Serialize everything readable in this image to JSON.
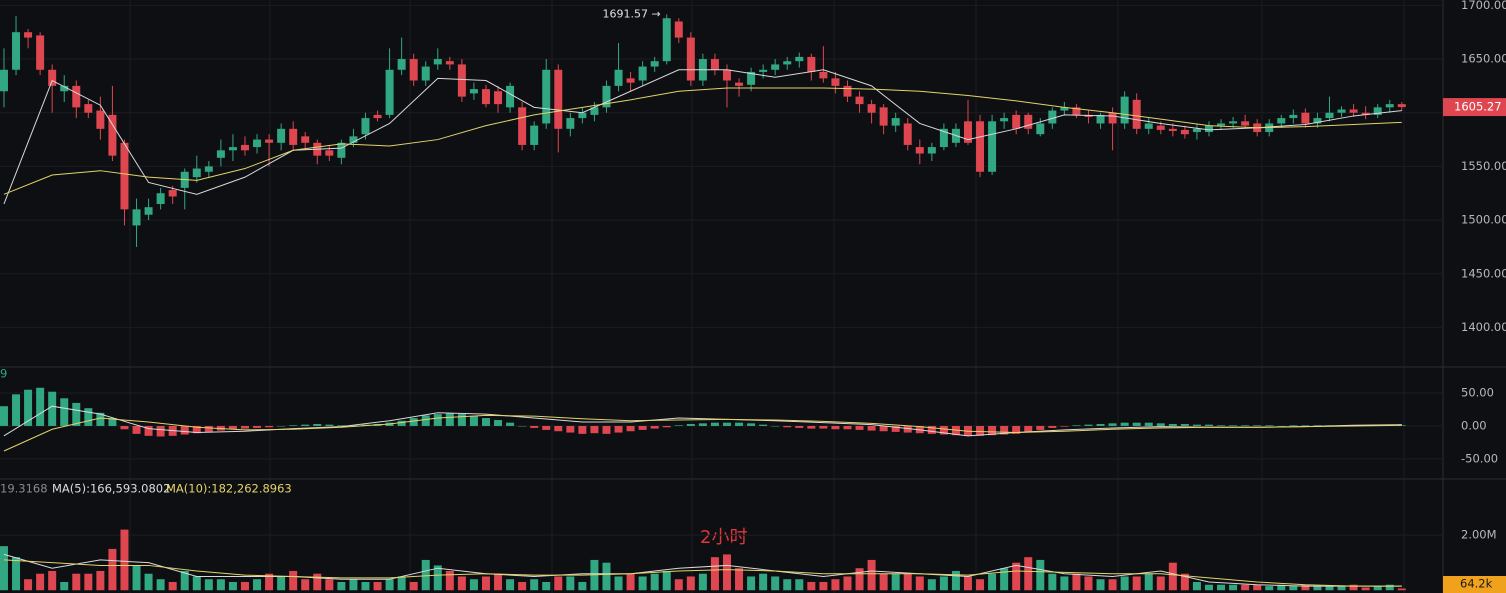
{
  "chart_data": {
    "type": "candlestick",
    "interval": "2小时",
    "up_color": "#31a882",
    "down_color": "#de4650",
    "xlim": [
      -0.33,
      119.42
    ],
    "ylim": [
      1365,
      1705
    ],
    "yticks": [
      {
        "value": 1700,
        "label": "1700.00"
      },
      {
        "value": 1650,
        "label": "1650.00"
      },
      {
        "value": 1600,
        "label": "1600.00"
      },
      {
        "value": 1550,
        "label": "1550.00"
      },
      {
        "value": 1500,
        "label": "1500.00"
      },
      {
        "value": 1450,
        "label": "1450.00"
      },
      {
        "value": 1400,
        "label": "1400.00"
      }
    ],
    "grid": true,
    "annotation": {
      "label": "1691.57 →",
      "value": 1691.57,
      "x": 55
    },
    "candles": [
      [
        1620,
        1660,
        1605,
        1640
      ],
      [
        1640,
        1690,
        1635,
        1675
      ],
      [
        1675,
        1678,
        1660,
        1670
      ],
      [
        1672,
        1675,
        1635,
        1640
      ],
      [
        1640,
        1645,
        1600,
        1625
      ],
      [
        1620,
        1635,
        1610,
        1625
      ],
      [
        1625,
        1630,
        1595,
        1605
      ],
      [
        1608,
        1612,
        1595,
        1600
      ],
      [
        1602,
        1615,
        1575,
        1585
      ],
      [
        1598,
        1625,
        1555,
        1560
      ],
      [
        1572,
        1575,
        1495,
        1510
      ],
      [
        1495,
        1520,
        1475,
        1510
      ],
      [
        1505,
        1520,
        1500,
        1512
      ],
      [
        1515,
        1530,
        1510,
        1525
      ],
      [
        1528,
        1532,
        1515,
        1522
      ],
      [
        1530,
        1548,
        1510,
        1545
      ],
      [
        1540,
        1560,
        1535,
        1548
      ],
      [
        1545,
        1555,
        1540,
        1550
      ],
      [
        1558,
        1575,
        1550,
        1565
      ],
      [
        1565,
        1580,
        1555,
        1568
      ],
      [
        1570,
        1578,
        1560,
        1565
      ],
      [
        1568,
        1580,
        1562,
        1575
      ],
      [
        1575,
        1580,
        1550,
        1572
      ],
      [
        1572,
        1590,
        1565,
        1585
      ],
      [
        1585,
        1592,
        1565,
        1570
      ],
      [
        1578,
        1582,
        1565,
        1572
      ],
      [
        1572,
        1575,
        1552,
        1560
      ],
      [
        1565,
        1570,
        1555,
        1560
      ],
      [
        1558,
        1575,
        1552,
        1572
      ],
      [
        1572,
        1585,
        1568,
        1578
      ],
      [
        1580,
        1600,
        1575,
        1595
      ],
      [
        1598,
        1602,
        1592,
        1595
      ],
      [
        1598,
        1660,
        1595,
        1640
      ],
      [
        1640,
        1670,
        1635,
        1650
      ],
      [
        1650,
        1655,
        1625,
        1630
      ],
      [
        1630,
        1648,
        1625,
        1643
      ],
      [
        1645,
        1660,
        1640,
        1650
      ],
      [
        1648,
        1652,
        1640,
        1645
      ],
      [
        1645,
        1650,
        1610,
        1615
      ],
      [
        1618,
        1628,
        1612,
        1622
      ],
      [
        1622,
        1626,
        1605,
        1608
      ],
      [
        1620,
        1625,
        1600,
        1608
      ],
      [
        1605,
        1628,
        1600,
        1625
      ],
      [
        1605,
        1610,
        1565,
        1570
      ],
      [
        1570,
        1592,
        1565,
        1588
      ],
      [
        1590,
        1650,
        1585,
        1640
      ],
      [
        1640,
        1645,
        1563,
        1585
      ],
      [
        1585,
        1600,
        1578,
        1595
      ],
      [
        1595,
        1605,
        1590,
        1600
      ],
      [
        1598,
        1610,
        1592,
        1605
      ],
      [
        1605,
        1630,
        1600,
        1625
      ],
      [
        1625,
        1665,
        1620,
        1640
      ],
      [
        1632,
        1638,
        1620,
        1628
      ],
      [
        1630,
        1648,
        1625,
        1643
      ],
      [
        1643,
        1652,
        1638,
        1648
      ],
      [
        1648,
        1691.57,
        1645,
        1688
      ],
      [
        1685,
        1688,
        1665,
        1670
      ],
      [
        1670,
        1675,
        1625,
        1630
      ],
      [
        1630,
        1655,
        1625,
        1650
      ],
      [
        1650,
        1655,
        1635,
        1640
      ],
      [
        1640,
        1645,
        1605,
        1630
      ],
      [
        1628,
        1632,
        1615,
        1625
      ],
      [
        1626,
        1642,
        1620,
        1638
      ],
      [
        1638,
        1645,
        1632,
        1640
      ],
      [
        1640,
        1650,
        1635,
        1645
      ],
      [
        1645,
        1652,
        1640,
        1648
      ],
      [
        1648,
        1656,
        1642,
        1652
      ],
      [
        1652,
        1655,
        1630,
        1638
      ],
      [
        1638,
        1662,
        1628,
        1632
      ],
      [
        1632,
        1638,
        1618,
        1625
      ],
      [
        1625,
        1630,
        1610,
        1615
      ],
      [
        1615,
        1620,
        1600,
        1608
      ],
      [
        1608,
        1612,
        1590,
        1600
      ],
      [
        1605,
        1608,
        1580,
        1588
      ],
      [
        1588,
        1600,
        1582,
        1595
      ],
      [
        1590,
        1595,
        1565,
        1570
      ],
      [
        1568,
        1575,
        1552,
        1562
      ],
      [
        1562,
        1572,
        1555,
        1568
      ],
      [
        1568,
        1590,
        1565,
        1585
      ],
      [
        1572,
        1590,
        1568,
        1585
      ],
      [
        1592,
        1612,
        1570,
        1572
      ],
      [
        1592,
        1598,
        1540,
        1545
      ],
      [
        1545,
        1598,
        1542,
        1592
      ],
      [
        1592,
        1600,
        1585,
        1595
      ],
      [
        1598,
        1602,
        1580,
        1585
      ],
      [
        1598,
        1600,
        1580,
        1585
      ],
      [
        1580,
        1595,
        1578,
        1590
      ],
      [
        1590,
        1605,
        1585,
        1602
      ],
      [
        1602,
        1610,
        1598,
        1605
      ],
      [
        1605,
        1608,
        1595,
        1598
      ],
      [
        1598,
        1602,
        1590,
        1596
      ],
      [
        1590,
        1600,
        1585,
        1598
      ],
      [
        1600,
        1605,
        1565,
        1590
      ],
      [
        1590,
        1620,
        1585,
        1615
      ],
      [
        1612,
        1618,
        1580,
        1585
      ],
      [
        1585,
        1595,
        1580,
        1590
      ],
      [
        1588,
        1592,
        1580,
        1584
      ],
      [
        1585,
        1590,
        1578,
        1583
      ],
      [
        1584,
        1588,
        1576,
        1580
      ],
      [
        1582,
        1590,
        1575,
        1585
      ],
      [
        1582,
        1592,
        1578,
        1588
      ],
      [
        1588,
        1594,
        1584,
        1590
      ],
      [
        1590,
        1596,
        1586,
        1592
      ],
      [
        1592,
        1598,
        1586,
        1588
      ],
      [
        1590,
        1594,
        1578,
        1582
      ],
      [
        1582,
        1594,
        1578,
        1590
      ],
      [
        1590,
        1598,
        1586,
        1595
      ],
      [
        1595,
        1603,
        1590,
        1598
      ],
      [
        1600,
        1604,
        1586,
        1590
      ],
      [
        1590,
        1600,
        1586,
        1595
      ],
      [
        1595,
        1615,
        1592,
        1600
      ],
      [
        1600,
        1606,
        1596,
        1603
      ],
      [
        1603,
        1608,
        1596,
        1600
      ],
      [
        1600,
        1606,
        1594,
        1598
      ],
      [
        1598,
        1608,
        1595,
        1605
      ],
      [
        1605,
        1612,
        1600,
        1608
      ],
      [
        1608,
        1610,
        1602,
        1605.27
      ]
    ],
    "ma_x": [
      0,
      4,
      8,
      12,
      16,
      20,
      24,
      28,
      32,
      36,
      40,
      44,
      48,
      52,
      56,
      60,
      64,
      68,
      72,
      76,
      80,
      84,
      88,
      92,
      96,
      100,
      104,
      108,
      112,
      116
    ],
    "lines": [
      {
        "color": "#d9d9d9",
        "values": [
          1515,
          1630,
          1607,
          1535,
          1524,
          1540,
          1565,
          1567,
          1590,
          1632,
          1630,
          1605,
          1600,
          1620,
          1640,
          1640,
          1633,
          1640,
          1625,
          1590,
          1575,
          1585,
          1598,
          1597,
          1590,
          1584,
          1586,
          1589,
          1597,
          1602
        ]
      },
      {
        "color": "#e3d36a",
        "values": [
          1524,
          1542,
          1546,
          1540,
          1537,
          1548,
          1565,
          1571,
          1569,
          1575,
          1588,
          1598,
          1605,
          1612,
          1620,
          1623,
          1623,
          1623,
          1622,
          1620,
          1616,
          1611,
          1605,
          1600,
          1594,
          1588,
          1586,
          1587,
          1589,
          1591
        ]
      }
    ],
    "macd": {
      "legend": "9",
      "ylim": [
        -79,
        88
      ],
      "yticks": [
        {
          "value": 50,
          "label": "50.00"
        },
        {
          "value": 0,
          "label": "0.00"
        },
        {
          "value": -50,
          "label": "-50.00"
        }
      ],
      "histogram": [
        30,
        48,
        55,
        58,
        52,
        42,
        35,
        27,
        20,
        12,
        -5,
        -12,
        -15,
        -16,
        -15,
        -13,
        -11,
        -9,
        -7,
        -5,
        -4,
        -3,
        -2,
        0,
        1,
        2,
        3,
        2,
        1,
        1,
        2,
        3,
        5,
        8,
        12,
        16,
        18,
        19,
        18,
        15,
        12,
        9,
        5,
        0,
        -3,
        -6,
        -8,
        -10,
        -12,
        -11,
        -12,
        -10,
        -8,
        -6,
        -4,
        -2,
        1,
        3,
        4,
        5,
        5,
        5,
        4,
        2,
        0,
        -2,
        -3,
        -4,
        -4,
        -5,
        -5,
        -6,
        -7,
        -8,
        -9,
        -10,
        -11,
        -12,
        -13,
        -14,
        -15,
        -15,
        -14,
        -13,
        -12,
        -9,
        -6,
        -3,
        -1,
        1,
        2,
        3,
        4,
        5,
        5,
        5,
        4,
        3,
        3,
        2,
        2,
        1,
        1,
        1,
        1,
        1,
        0,
        1,
        1,
        1,
        1,
        1,
        0,
        1,
        1,
        1,
        1
      ],
      "lines": [
        {
          "color": "#d9d9d9",
          "values": [
            -15,
            30,
            18,
            -4,
            -10,
            -8,
            -4,
            -1,
            8,
            20,
            18,
            12,
            6,
            6,
            12,
            10,
            8,
            5,
            2,
            -6,
            -15,
            -10,
            -6,
            -3,
            -1,
            -2,
            -2,
            -1,
            1,
            2
          ]
        },
        {
          "color": "#e3d36a",
          "values": [
            -38,
            -5,
            12,
            6,
            -2,
            -6,
            -5,
            -2,
            3,
            12,
            16,
            15,
            11,
            8,
            9,
            10,
            9,
            7,
            4,
            -1,
            -8,
            -10,
            -8,
            -5,
            -3,
            -2,
            -2,
            -1,
            0,
            1
          ]
        }
      ]
    },
    "volume": {
      "legend": [
        "19.3168",
        "MA(5):166,593.0802",
        "MA(10):182,262.8963"
      ],
      "ylim": [
        -0.1,
        4.0
      ],
      "yticks": [
        {
          "value": 2,
          "label": "2.00M"
        }
      ],
      "last_label": "64.2k",
      "values": [
        1.6,
        1.2,
        0.4,
        0.6,
        0.7,
        0.3,
        0.6,
        0.6,
        0.7,
        1.5,
        2.2,
        0.9,
        0.6,
        0.4,
        0.3,
        0.7,
        0.5,
        0.4,
        0.4,
        0.3,
        0.3,
        0.4,
        0.6,
        0.5,
        0.7,
        0.4,
        0.6,
        0.4,
        0.3,
        0.4,
        0.3,
        0.3,
        0.4,
        0.5,
        0.3,
        1.1,
        0.9,
        0.7,
        0.5,
        0.4,
        0.5,
        0.6,
        0.4,
        0.3,
        0.4,
        0.3,
        0.5,
        0.5,
        0.3,
        1.1,
        1.0,
        0.5,
        0.6,
        0.5,
        0.6,
        0.7,
        0.4,
        0.5,
        0.6,
        1.2,
        1.3,
        0.8,
        0.5,
        0.6,
        0.5,
        0.4,
        0.4,
        0.3,
        0.3,
        0.4,
        0.5,
        0.8,
        1.1,
        0.6,
        0.6,
        0.6,
        0.5,
        0.4,
        0.5,
        0.7,
        0.5,
        0.4,
        0.6,
        0.8,
        1.0,
        1.2,
        1.1,
        0.6,
        0.5,
        0.6,
        0.5,
        0.4,
        0.4,
        0.5,
        0.5,
        0.6,
        0.5,
        1.0,
        0.6,
        0.3,
        0.2,
        0.2,
        0.2,
        0.2,
        0.2,
        0.15,
        0.2,
        0.15,
        0.2,
        0.15,
        0.15,
        0.15,
        0.2,
        0.1,
        0.15,
        0.2,
        0.0642
      ],
      "lines": [
        {
          "color": "#d9d9d9",
          "values": [
            1.3,
            0.8,
            1.1,
            1.0,
            0.5,
            0.5,
            0.5,
            0.4,
            0.4,
            0.8,
            0.6,
            0.5,
            0.6,
            0.6,
            0.8,
            0.9,
            0.7,
            0.5,
            0.7,
            0.6,
            0.5,
            0.9,
            0.6,
            0.5,
            0.7,
            0.3,
            0.2,
            0.15,
            0.15,
            0.15
          ]
        },
        {
          "color": "#e3d36a",
          "values": [
            1.1,
            1.0,
            0.9,
            0.9,
            0.7,
            0.55,
            0.5,
            0.45,
            0.45,
            0.55,
            0.6,
            0.55,
            0.55,
            0.6,
            0.7,
            0.75,
            0.7,
            0.6,
            0.6,
            0.6,
            0.55,
            0.7,
            0.65,
            0.6,
            0.6,
            0.45,
            0.3,
            0.2,
            0.15,
            0.15
          ]
        }
      ]
    }
  }
}
